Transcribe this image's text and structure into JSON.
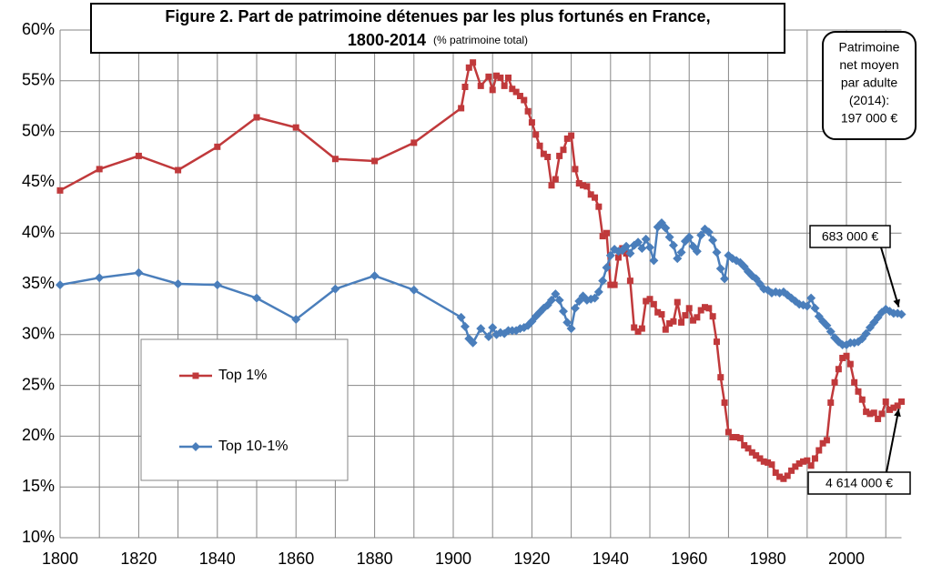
{
  "chart_data": {
    "type": "line",
    "title": "Figure 2. Part de patrimoine détenues par les plus fortunés en France,",
    "title_line2": "1800-2014",
    "subtitle": "(% patrimoine total)",
    "note_box": [
      "Patrimoine",
      "net moyen",
      "par adulte",
      "(2014):",
      "197 000 €"
    ],
    "annotations": [
      {
        "text": "683 000 €",
        "series": 1
      },
      {
        "text": "4 614 000 €",
        "series": 0
      }
    ],
    "x": [
      1800,
      1810,
      1820,
      1830,
      1840,
      1850,
      1860,
      1870,
      1880,
      1890,
      1902,
      1903,
      1904,
      1905,
      1907,
      1909,
      1910,
      1911,
      1912,
      1913,
      1914,
      1915,
      1916,
      1917,
      1918,
      1919,
      1920,
      1921,
      1922,
      1923,
      1924,
      1925,
      1926,
      1927,
      1928,
      1929,
      1930,
      1931,
      1932,
      1933,
      1934,
      1935,
      1936,
      1937,
      1938,
      1939,
      1940,
      1941,
      1942,
      1943,
      1944,
      1945,
      1946,
      1947,
      1948,
      1949,
      1950,
      1951,
      1952,
      1953,
      1954,
      1955,
      1956,
      1957,
      1958,
      1959,
      1960,
      1961,
      1962,
      1963,
      1964,
      1965,
      1966,
      1967,
      1968,
      1969,
      1970,
      1971,
      1972,
      1973,
      1974,
      1975,
      1976,
      1977,
      1978,
      1979,
      1980,
      1981,
      1982,
      1983,
      1984,
      1985,
      1986,
      1987,
      1988,
      1989,
      1990,
      1991,
      1992,
      1993,
      1994,
      1995,
      1996,
      1997,
      1998,
      1999,
      2000,
      2001,
      2002,
      2003,
      2004,
      2005,
      2006,
      2007,
      2008,
      2009,
      2010,
      2011,
      2012,
      2013,
      2014
    ],
    "series": [
      {
        "name": "Top 1%",
        "color": "#c0393b",
        "marker": "square",
        "values": [
          44.2,
          46.3,
          47.6,
          46.2,
          48.5,
          51.4,
          50.4,
          47.3,
          47.1,
          48.9,
          52.3,
          54.4,
          56.3,
          56.8,
          54.5,
          55.4,
          54.1,
          55.5,
          55.3,
          54.5,
          55.3,
          54.2,
          53.9,
          53.5,
          53.1,
          52.0,
          50.9,
          49.7,
          48.6,
          47.8,
          47.5,
          44.7,
          45.3,
          47.6,
          48.2,
          49.3,
          49.6,
          46.3,
          44.9,
          44.7,
          44.6,
          43.8,
          43.5,
          42.6,
          39.7,
          40.0,
          34.9,
          34.9,
          37.6,
          38.5,
          38.0,
          35.3,
          30.7,
          30.3,
          30.6,
          33.3,
          33.5,
          33.0,
          32.2,
          32.0,
          30.5,
          31.1,
          31.3,
          33.2,
          31.2,
          31.9,
          32.6,
          31.4,
          31.7,
          32.4,
          32.7,
          32.6,
          31.8,
          29.3,
          25.8,
          23.3,
          20.4,
          19.9,
          19.9,
          19.8,
          19.1,
          18.8,
          18.4,
          18.1,
          17.8,
          17.5,
          17.4,
          17.2,
          16.4,
          16.0,
          15.8,
          16.1,
          16.6,
          17.0,
          17.3,
          17.5,
          17.6,
          17.1,
          17.8,
          18.6,
          19.3,
          19.6,
          23.3,
          25.3,
          26.6,
          27.7,
          27.9,
          27.1,
          25.3,
          24.4,
          23.6,
          22.4,
          22.2,
          22.3,
          21.7,
          22.2,
          23.4,
          22.6,
          22.8,
          23.0,
          23.4
        ]
      },
      {
        "name": "Top 10-1%",
        "color": "#4a7ebb",
        "marker": "diamond",
        "values": [
          34.9,
          35.6,
          36.1,
          35.0,
          34.9,
          33.6,
          31.5,
          34.5,
          35.8,
          34.4,
          31.7,
          30.8,
          29.6,
          29.2,
          30.6,
          29.8,
          30.7,
          30.0,
          30.2,
          30.1,
          30.4,
          30.4,
          30.4,
          30.6,
          30.7,
          30.9,
          31.3,
          31.8,
          32.2,
          32.6,
          32.9,
          33.4,
          34.0,
          33.4,
          32.3,
          31.2,
          30.6,
          32.6,
          33.3,
          33.8,
          33.4,
          33.5,
          33.6,
          34.2,
          35.3,
          36.6,
          37.8,
          38.4,
          38.2,
          38.3,
          38.7,
          38.0,
          38.8,
          39.1,
          38.5,
          39.4,
          38.6,
          37.3,
          40.6,
          41.0,
          40.5,
          39.6,
          38.8,
          37.5,
          38.1,
          39.2,
          39.6,
          38.7,
          38.2,
          39.8,
          40.4,
          40.1,
          39.3,
          38.1,
          36.5,
          35.5,
          37.8,
          37.5,
          37.3,
          37.1,
          36.7,
          36.2,
          35.8,
          35.5,
          35.0,
          34.5,
          34.4,
          34.1,
          34.2,
          34.1,
          34.2,
          33.9,
          33.6,
          33.3,
          33.0,
          32.9,
          32.8,
          33.6,
          32.6,
          31.8,
          31.3,
          30.9,
          30.3,
          29.7,
          29.3,
          29.0,
          29.0,
          29.2,
          29.2,
          29.3,
          29.6,
          30.1,
          30.7,
          31.2,
          31.7,
          32.2,
          32.5,
          32.3,
          32.1,
          32.1,
          32.0
        ]
      }
    ],
    "xlim": [
      1800,
      2014
    ],
    "xticks": [
      1800,
      1820,
      1840,
      1860,
      1880,
      1900,
      1920,
      1940,
      1960,
      1980,
      2000
    ],
    "x_minor_ticks": [
      1810,
      1830,
      1850,
      1870,
      1890,
      1910,
      1930,
      1950,
      1970,
      1990,
      2010
    ],
    "ylim": [
      10,
      60
    ],
    "yticks": [
      {
        "value": 10,
        "label": "10%"
      },
      {
        "value": 15,
        "label": "15%"
      },
      {
        "value": 20,
        "label": "20%"
      },
      {
        "value": 25,
        "label": "25%"
      },
      {
        "value": 30,
        "label": "30%"
      },
      {
        "value": 35,
        "label": "35%"
      },
      {
        "value": 40,
        "label": "40%"
      },
      {
        "value": 45,
        "label": "45%"
      },
      {
        "value": 50,
        "label": "50%"
      },
      {
        "value": 55,
        "label": "55%"
      },
      {
        "value": 60,
        "label": "60%"
      }
    ],
    "grid": true,
    "legend": "left"
  }
}
